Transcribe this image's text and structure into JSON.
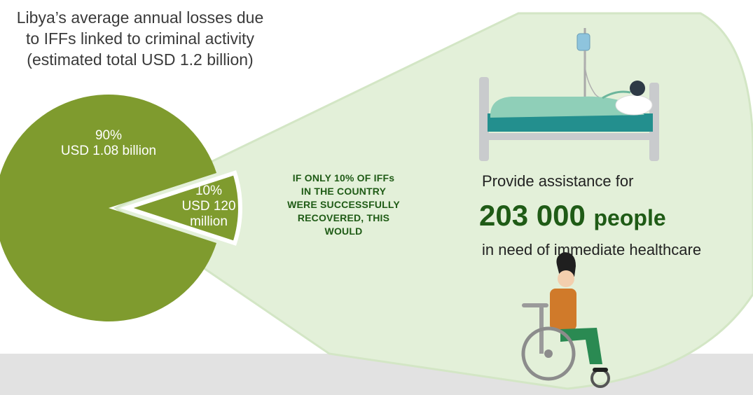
{
  "chart_data": {
    "type": "pie",
    "title": "Libya’s average annual losses due to IFFs linked to criminal activity (estimated total USD 1.2 billion)",
    "title_lines": [
      "Libya’s average annual losses due",
      "to IFFs linked to criminal activity",
      "(estimated total USD 1.2 billion)"
    ],
    "slices": [
      {
        "percent": "90%",
        "value_label_lines": [
          "USD 1.08 billion"
        ],
        "value": 1.08,
        "color": "#7f9b2e",
        "exploded": false
      },
      {
        "percent": "10%",
        "value_label_lines": [
          "USD 120",
          "million"
        ],
        "value": 0.12,
        "color": "#7f9b2e",
        "exploded": true
      }
    ]
  },
  "callout": {
    "lines": [
      "IF ONLY 10% OF IFFs",
      "IN THE COUNTRY",
      "WERE SUCCESSFULLY",
      "RECOVERED, THIS",
      "WOULD"
    ]
  },
  "impact": {
    "intro": "Provide assistance for",
    "number": "203 000",
    "unit": "people",
    "tail": "in need of immediate healthcare"
  },
  "illustrations": {
    "top": "hospital-bed-patient-icon",
    "bottom": "wheelchair-user-icon"
  },
  "colors": {
    "pie": "#7f9b2e",
    "callout_fill": "#e3f0d9",
    "callout_border": "#d3e6c5",
    "accent_text": "#1f5b16",
    "band": "#e2e2e2"
  }
}
